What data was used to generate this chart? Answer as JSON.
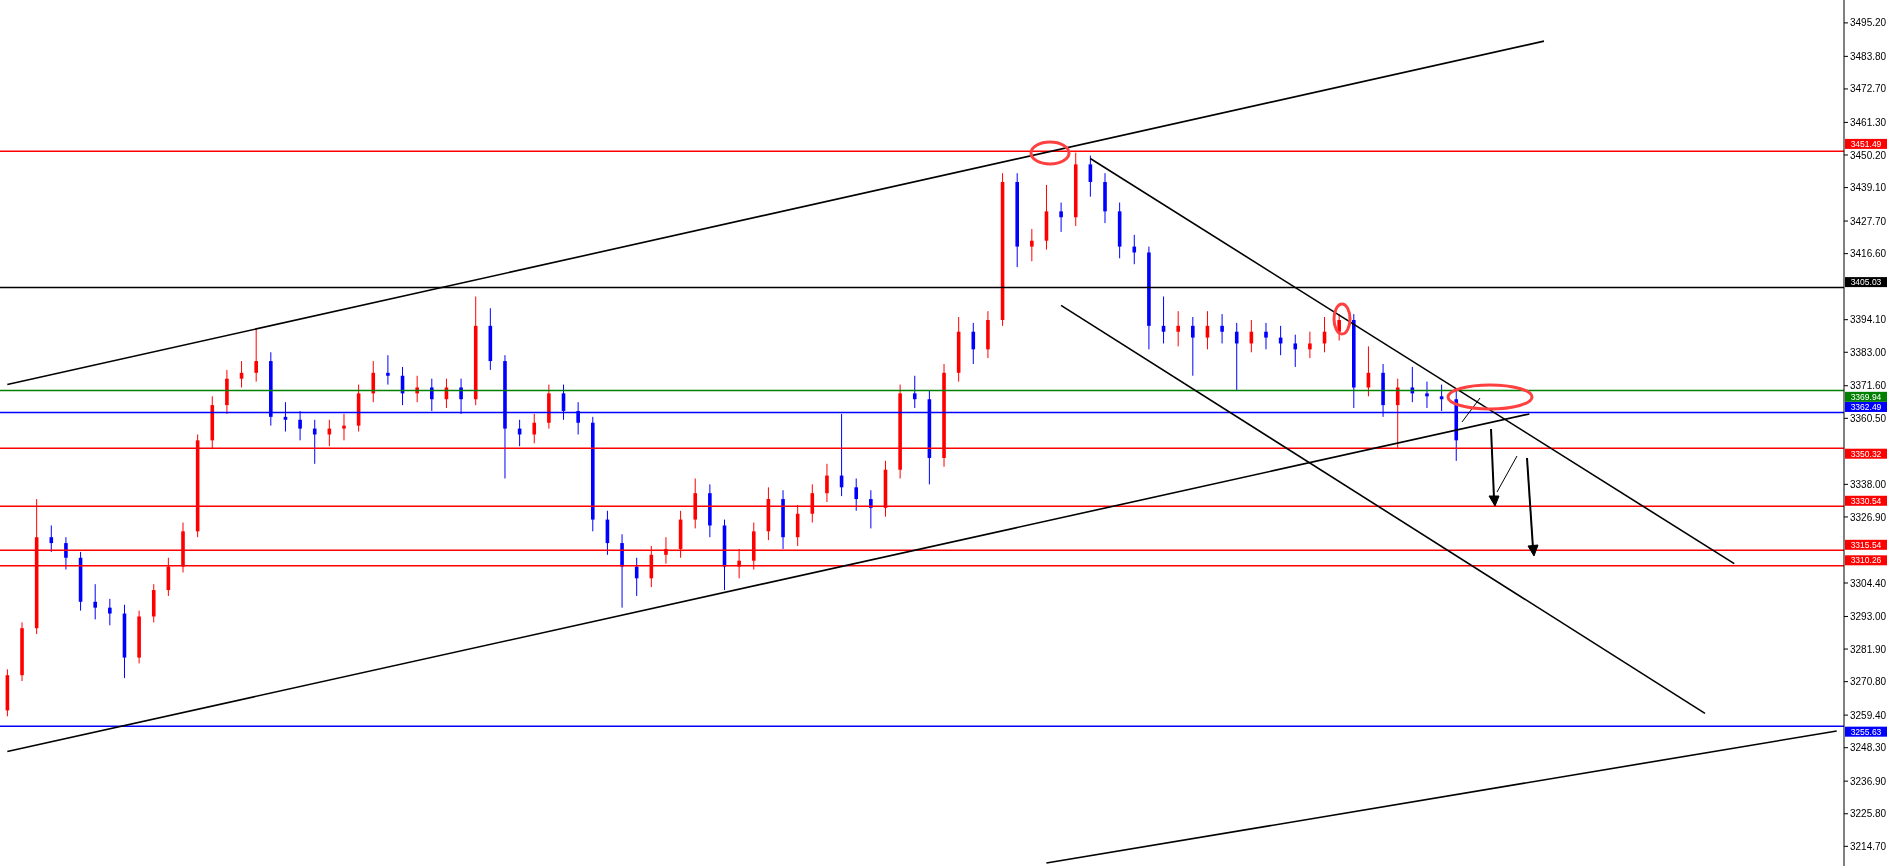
{
  "chart_data": {
    "type": "candlestick",
    "categories": [
      null,
      null,
      null,
      null,
      null,
      null,
      null,
      null,
      null,
      null,
      null,
      null,
      null,
      null,
      null,
      null,
      null,
      null,
      null,
      null,
      null,
      null,
      null,
      null,
      null,
      null,
      null,
      null,
      null,
      null,
      null,
      null,
      null,
      null,
      null,
      null,
      null,
      null,
      null,
      null,
      null,
      null,
      null,
      null,
      null,
      null,
      null,
      null,
      null,
      null,
      null,
      null,
      null,
      null,
      null,
      null,
      null,
      null,
      null,
      null,
      null,
      null,
      null,
      null,
      null,
      null,
      null,
      null,
      null,
      null,
      null,
      null,
      null,
      null,
      null,
      null,
      null,
      null,
      null,
      null,
      null,
      null,
      null,
      null,
      null,
      null,
      null,
      null,
      null,
      null,
      null,
      null,
      null,
      null,
      null,
      null,
      null,
      null,
      null,
      null,
      null,
      null,
      null,
      null,
      null,
      null,
      null,
      null,
      null,
      null,
      null,
      null,
      null,
      null,
      null,
      null,
      null,
      null,
      null,
      null,
      null,
      null,
      null,
      null,
      null,
      null
    ],
    "ohlc": [
      [
        3261,
        3275,
        3259,
        3273
      ],
      [
        3273,
        3291,
        3271,
        3289
      ],
      [
        3289,
        3333,
        3287,
        3320
      ],
      [
        3320,
        3324,
        3315,
        3318
      ],
      [
        3318,
        3320,
        3309,
        3313
      ],
      [
        3313,
        3315,
        3295,
        3298
      ],
      [
        3298,
        3304,
        3292,
        3296
      ],
      [
        3296,
        3299,
        3290,
        3294
      ],
      [
        3294,
        3297,
        3272,
        3279
      ],
      [
        3279,
        3295,
        3277,
        3293
      ],
      [
        3293,
        3304,
        3291,
        3302
      ],
      [
        3302,
        3313,
        3300,
        3310
      ],
      [
        3310,
        3325,
        3308,
        3322
      ],
      [
        3322,
        3355,
        3320,
        3353
      ],
      [
        3353,
        3368,
        3350,
        3365
      ],
      [
        3365,
        3377,
        3362,
        3374
      ],
      [
        3374,
        3380,
        3371,
        3376
      ],
      [
        3376,
        3391,
        3373,
        3380
      ],
      [
        3380,
        3383,
        3358,
        3361
      ],
      [
        3361,
        3366,
        3356,
        3360
      ],
      [
        3360,
        3363,
        3353,
        3357
      ],
      [
        3357,
        3360,
        3345,
        3355
      ],
      [
        3355,
        3360,
        3351,
        3357
      ],
      [
        3357,
        3362,
        3353,
        3358
      ],
      [
        3358,
        3372,
        3356,
        3369
      ],
      [
        3369,
        3380,
        3366,
        3376
      ],
      [
        3376,
        3382,
        3372,
        3375
      ],
      [
        3375,
        3378,
        3365,
        3369
      ],
      [
        3369,
        3375,
        3366,
        3371
      ],
      [
        3371,
        3374,
        3363,
        3367
      ],
      [
        3367,
        3374,
        3364,
        3371
      ],
      [
        3371,
        3374,
        3362,
        3367
      ],
      [
        3367,
        3402,
        3365,
        3392
      ],
      [
        3392,
        3398,
        3377,
        3380
      ],
      [
        3380,
        3382,
        3340,
        3357
      ],
      [
        3357,
        3360,
        3351,
        3355
      ],
      [
        3355,
        3362,
        3352,
        3359
      ],
      [
        3359,
        3372,
        3357,
        3369
      ],
      [
        3369,
        3372,
        3360,
        3363
      ],
      [
        3363,
        3366,
        3355,
        3359
      ],
      [
        3359,
        3361,
        3322,
        3326
      ],
      [
        3326,
        3329,
        3314,
        3318
      ],
      [
        3318,
        3321,
        3296,
        3310
      ],
      [
        3310,
        3313,
        3300,
        3306
      ],
      [
        3306,
        3317,
        3303,
        3314
      ],
      [
        3314,
        3320,
        3311,
        3316
      ],
      [
        3316,
        3329,
        3313,
        3326
      ],
      [
        3326,
        3340,
        3323,
        3335
      ],
      [
        3335,
        3338,
        3320,
        3324
      ],
      [
        3324,
        3326,
        3302,
        3310
      ],
      [
        3310,
        3316,
        3306,
        3312
      ],
      [
        3312,
        3325,
        3309,
        3322
      ],
      [
        3322,
        3337,
        3319,
        3333
      ],
      [
        3333,
        3336,
        3316,
        3320
      ],
      [
        3320,
        3331,
        3317,
        3328
      ],
      [
        3328,
        3338,
        3325,
        3335
      ],
      [
        3335,
        3345,
        3332,
        3341
      ],
      [
        3341,
        3362,
        3334,
        3337
      ],
      [
        3337,
        3340,
        3329,
        3333
      ],
      [
        3333,
        3336,
        3323,
        3330
      ],
      [
        3330,
        3346,
        3327,
        3343
      ],
      [
        3343,
        3372,
        3340,
        3369
      ],
      [
        3369,
        3375,
        3364,
        3367
      ],
      [
        3367,
        3370,
        3338,
        3347
      ],
      [
        3347,
        3379,
        3344,
        3376
      ],
      [
        3376,
        3395,
        3373,
        3390
      ],
      [
        3390,
        3393,
        3379,
        3384
      ],
      [
        3384,
        3397,
        3381,
        3394
      ],
      [
        3394,
        3444,
        3392,
        3441
      ],
      [
        3441,
        3444,
        3412,
        3419
      ],
      [
        3419,
        3425,
        3414,
        3421
      ],
      [
        3421,
        3440,
        3418,
        3431
      ],
      [
        3431,
        3434,
        3424,
        3429
      ],
      [
        3429,
        3451,
        3426,
        3447
      ],
      [
        3447,
        3450,
        3436,
        3441
      ],
      [
        3441,
        3444,
        3427,
        3431
      ],
      [
        3431,
        3434,
        3415,
        3419
      ],
      [
        3419,
        3423,
        3413,
        3417
      ],
      [
        3417,
        3419,
        3384,
        3392
      ],
      [
        3392,
        3402,
        3386,
        3390
      ],
      [
        3390,
        3397,
        3385,
        3392
      ],
      [
        3392,
        3395,
        3375,
        3388
      ],
      [
        3388,
        3397,
        3384,
        3392
      ],
      [
        3392,
        3396,
        3386,
        3390
      ],
      [
        3390,
        3393,
        3370,
        3386
      ],
      [
        3386,
        3394,
        3383,
        3390
      ],
      [
        3390,
        3393,
        3384,
        3388
      ],
      [
        3388,
        3392,
        3382,
        3386
      ],
      [
        3386,
        3389,
        3378,
        3384
      ],
      [
        3384,
        3390,
        3381,
        3386
      ],
      [
        3386,
        3395,
        3383,
        3390
      ],
      [
        3390,
        3396,
        3387,
        3394
      ],
      [
        3394,
        3396,
        3364,
        3371
      ],
      [
        3371,
        3385,
        3368,
        3376
      ],
      [
        3376,
        3379,
        3361,
        3365
      ],
      [
        3365,
        3374,
        3350,
        3371
      ],
      [
        3371,
        3378,
        3366,
        3369
      ],
      [
        3369,
        3373,
        3364,
        3368
      ],
      [
        3368,
        3372,
        3363,
        3367
      ],
      [
        3367,
        3370,
        3346,
        3353
      ],
      null,
      null,
      null,
      null,
      null,
      null,
      null,
      null,
      null,
      null,
      null,
      null,
      null,
      null,
      null,
      null,
      null,
      null,
      null,
      null,
      null,
      null,
      null,
      null,
      null,
      null
    ],
    "colors": [
      "#ff0000",
      "#ff0000",
      "#ff0000",
      "#0000ff",
      "#0000ff",
      "#0000ff",
      "#0000ff",
      "#0000ff",
      "#0000ff",
      "#ff0000",
      "#ff0000",
      "#ff0000",
      "#ff0000",
      "#ff0000",
      "#ff0000",
      "#ff0000",
      "#ff0000",
      "#ff0000",
      "#0000ff",
      "#0000ff",
      "#0000ff",
      "#0000ff",
      "#ff0000",
      "#ff0000",
      "#ff0000",
      "#ff0000",
      "#0000ff",
      "#0000ff",
      "#ff0000",
      "#0000ff",
      "#ff0000",
      "#0000ff",
      "#ff0000",
      "#0000ff",
      "#0000ff",
      "#0000ff",
      "#ff0000",
      "#ff0000",
      "#0000ff",
      "#0000ff",
      "#0000ff",
      "#0000ff",
      "#0000ff",
      "#0000ff",
      "#ff0000",
      "#ff0000",
      "#ff0000",
      "#ff0000",
      "#0000ff",
      "#0000ff",
      "#ff0000",
      "#ff0000",
      "#ff0000",
      "#0000ff",
      "#ff0000",
      "#ff0000",
      "#ff0000",
      "#0000ff",
      "#0000ff",
      "#0000ff",
      "#ff0000",
      "#ff0000",
      "#0000ff",
      "#0000ff",
      "#ff0000",
      "#ff0000",
      "#0000ff",
      "#ff0000",
      "#ff0000",
      "#0000ff",
      "#ff0000",
      "#ff0000",
      "#0000ff",
      "#ff0000",
      "#0000ff",
      "#0000ff",
      "#0000ff",
      "#0000ff",
      "#0000ff",
      "#0000ff",
      "#ff0000",
      "#0000ff",
      "#ff0000",
      "#0000ff",
      "#0000ff",
      "#ff0000",
      "#0000ff",
      "#0000ff",
      "#0000ff",
      "#ff0000",
      "#ff0000",
      "#ff0000",
      "#0000ff",
      "#ff0000",
      "#0000ff",
      "#ff0000",
      "#0000ff",
      "#0000ff",
      "#0000ff",
      "#0000ff",
      null,
      null,
      null,
      null,
      null,
      null,
      null,
      null,
      null,
      null,
      null,
      null,
      null,
      null,
      null,
      null,
      null,
      null,
      null,
      null,
      null,
      null,
      null,
      null,
      null,
      null
    ],
    "series": [
      {
        "type": "line",
        "color": "#000000",
        "values": [
          3372,
          null,
          null,
          null,
          null,
          null,
          null,
          null,
          null,
          null,
          null,
          null,
          null,
          null,
          null,
          null,
          null,
          null,
          null,
          null,
          null,
          null,
          null,
          null,
          null,
          null,
          null,
          null,
          null,
          null,
          null,
          null,
          null,
          null,
          null,
          null,
          null,
          null,
          null,
          null,
          null,
          null,
          null,
          null,
          null,
          null,
          null,
          null,
          null,
          null,
          null,
          null,
          null,
          null,
          null,
          null,
          null,
          null,
          null,
          null,
          null,
          null,
          null,
          null,
          null,
          null,
          null,
          null,
          null,
          null,
          null,
          null,
          null,
          null,
          null,
          null,
          null,
          null,
          null,
          null,
          null,
          null,
          null,
          null,
          null,
          null,
          null,
          null,
          null,
          null,
          null,
          null,
          null,
          null,
          null,
          null,
          null,
          null,
          null,
          null,
          null,
          null,
          null,
          null,
          null,
          3489,
          null,
          null,
          null,
          null,
          null,
          null,
          null,
          null,
          null,
          null,
          null,
          null,
          null,
          null,
          null,
          null,
          null,
          null,
          null,
          null
        ]
      },
      {
        "type": "line",
        "color": "#000000",
        "values": [
          3247,
          null,
          null,
          null,
          null,
          null,
          null,
          null,
          null,
          null,
          null,
          null,
          null,
          null,
          null,
          null,
          null,
          null,
          null,
          null,
          null,
          null,
          null,
          null,
          null,
          null,
          null,
          null,
          null,
          null,
          null,
          null,
          null,
          null,
          null,
          null,
          null,
          null,
          null,
          null,
          null,
          null,
          null,
          null,
          null,
          null,
          null,
          null,
          null,
          null,
          null,
          null,
          null,
          null,
          null,
          null,
          null,
          null,
          null,
          null,
          null,
          null,
          null,
          null,
          null,
          null,
          null,
          null,
          null,
          null,
          null,
          null,
          null,
          null,
          null,
          null,
          null,
          null,
          null,
          null,
          null,
          null,
          null,
          null,
          null,
          null,
          null,
          null,
          null,
          null,
          null,
          null,
          null,
          null,
          null,
          null,
          null,
          null,
          null,
          null,
          null,
          null,
          null,
          null,
          3362,
          null,
          null,
          null,
          null,
          null,
          null,
          null,
          null,
          null,
          null,
          null,
          null,
          null,
          null,
          null,
          null,
          null,
          null,
          null,
          null,
          null
        ]
      },
      {
        "type": "line",
        "color": "#000000",
        "values": [
          null,
          null,
          null,
          null,
          null,
          null,
          null,
          null,
          null,
          null,
          null,
          null,
          null,
          null,
          null,
          null,
          null,
          null,
          null,
          null,
          null,
          null,
          null,
          null,
          null,
          null,
          null,
          null,
          null,
          null,
          null,
          null,
          null,
          null,
          null,
          null,
          null,
          null,
          null,
          null,
          null,
          null,
          null,
          null,
          null,
          null,
          null,
          null,
          null,
          null,
          null,
          null,
          null,
          null,
          null,
          null,
          null,
          null,
          null,
          null,
          null,
          null,
          null,
          null,
          null,
          null,
          null,
          null,
          null,
          null,
          null,
          3209,
          null,
          null,
          null,
          null,
          null,
          null,
          null,
          null,
          null,
          null,
          null,
          null,
          null,
          null,
          null,
          null,
          null,
          null,
          null,
          null,
          null,
          null,
          null,
          null,
          null,
          null,
          null,
          null,
          null,
          null,
          null,
          null,
          null,
          null,
          null,
          null,
          null,
          null,
          null,
          null,
          null,
          null,
          null,
          null,
          null,
          null,
          null,
          null,
          null,
          null,
          null,
          null,
          null,
          3254
        ]
      },
      {
        "type": "line",
        "color": "#000000",
        "values": [
          null,
          null,
          null,
          null,
          null,
          null,
          null,
          null,
          null,
          null,
          null,
          null,
          null,
          null,
          null,
          null,
          null,
          null,
          null,
          null,
          null,
          null,
          null,
          null,
          null,
          null,
          null,
          null,
          null,
          null,
          null,
          null,
          null,
          null,
          null,
          null,
          null,
          null,
          null,
          null,
          null,
          null,
          null,
          null,
          null,
          null,
          null,
          null,
          null,
          null,
          null,
          null,
          null,
          null,
          null,
          null,
          null,
          null,
          null,
          null,
          null,
          null,
          null,
          null,
          null,
          null,
          null,
          null,
          null,
          null,
          null,
          null,
          null,
          null,
          3449,
          null,
          null,
          null,
          null,
          null,
          null,
          null,
          null,
          null,
          null,
          null,
          null,
          null,
          null,
          null,
          null,
          null,
          null,
          null,
          null,
          null,
          null,
          null,
          null,
          null,
          null,
          null,
          null,
          null,
          null,
          null,
          null,
          null,
          null,
          null,
          null,
          null,
          null,
          null,
          null,
          null,
          null,
          null,
          3311,
          null,
          null,
          null,
          null,
          null,
          null,
          null
        ]
      },
      {
        "type": "line",
        "color": "#000000",
        "values": [
          null,
          null,
          null,
          null,
          null,
          null,
          null,
          null,
          null,
          null,
          null,
          null,
          null,
          null,
          null,
          null,
          null,
          null,
          null,
          null,
          null,
          null,
          null,
          null,
          null,
          null,
          null,
          null,
          null,
          null,
          null,
          null,
          null,
          null,
          null,
          null,
          null,
          null,
          null,
          null,
          null,
          null,
          null,
          null,
          null,
          null,
          null,
          null,
          null,
          null,
          null,
          null,
          null,
          null,
          null,
          null,
          null,
          null,
          null,
          null,
          null,
          null,
          null,
          null,
          null,
          null,
          null,
          null,
          null,
          null,
          null,
          null,
          3399,
          null,
          null,
          null,
          null,
          null,
          null,
          null,
          null,
          null,
          null,
          null,
          null,
          null,
          null,
          null,
          null,
          null,
          null,
          null,
          null,
          null,
          null,
          null,
          null,
          null,
          null,
          null,
          null,
          null,
          null,
          null,
          null,
          null,
          null,
          null,
          null,
          null,
          null,
          null,
          null,
          null,
          null,
          null,
          3260,
          null,
          null,
          null,
          null,
          null,
          null,
          null,
          null,
          null
        ]
      }
    ],
    "ylim": [
      3208,
      3503
    ],
    "yticks": [
      {
        "value": 3495.2,
        "label": "3495.20"
      },
      {
        "value": 3483.8,
        "label": "3483.80"
      },
      {
        "value": 3472.7,
        "label": "3472.70"
      },
      {
        "value": 3461.3,
        "label": "3461.30"
      },
      {
        "value": 3450.2,
        "label": "3450.20"
      },
      {
        "value": 3439.1,
        "label": "3439.10"
      },
      {
        "value": 3427.7,
        "label": "3427.70"
      },
      {
        "value": 3416.6,
        "label": "3416.60"
      },
      {
        "value": 3394.1,
        "label": "3394.10"
      },
      {
        "value": 3383,
        "label": "3383.00"
      },
      {
        "value": 3371.6,
        "label": "3371.60"
      },
      {
        "value": 3360.5,
        "label": "3360.50"
      },
      {
        "value": 3338,
        "label": "3338.00"
      },
      {
        "value": 3326.9,
        "label": "3326.90"
      },
      {
        "value": 3304.4,
        "label": "3304.40"
      },
      {
        "value": 3293,
        "label": "3293.00"
      },
      {
        "value": 3281.9,
        "label": "3281.90"
      },
      {
        "value": 3270.8,
        "label": "3270.80"
      },
      {
        "value": 3259.4,
        "label": "3259.40"
      },
      {
        "value": 3248.3,
        "label": "3248.30"
      },
      {
        "value": 3236.9,
        "label": "3236.90"
      },
      {
        "value": 3225.8,
        "label": "3225.80"
      },
      {
        "value": 3214.7,
        "label": "3214.70"
      }
    ],
    "ref_lines": [
      {
        "axis": "y",
        "value": 3451.49,
        "label": "3451.49",
        "color": "#ff0000"
      },
      {
        "axis": "y",
        "value": 3405.03,
        "label": "3405.03",
        "color": "#000000"
      },
      {
        "axis": "y",
        "value": 3369.94,
        "label": "3369.94",
        "color": "#008000"
      },
      {
        "axis": "y",
        "value": 3362.49,
        "label": "3362.49",
        "color": "#0000ff"
      },
      {
        "axis": "y",
        "value": 3350.32,
        "label": "3350.32",
        "color": "#ff0000"
      },
      {
        "axis": "y",
        "value": 3330.54,
        "label": "3330.54",
        "color": "#ff0000"
      },
      {
        "axis": "y",
        "value": 3315.54,
        "label": "3315.54",
        "color": "#ff0000"
      },
      {
        "axis": "y",
        "value": 3310.26,
        "label": "3310.26",
        "color": "#ff0000"
      },
      {
        "axis": "y",
        "value": 3255.63,
        "label": "3255.63",
        "color": "#0000ff"
      }
    ],
    "tick_labels": "y"
  }
}
